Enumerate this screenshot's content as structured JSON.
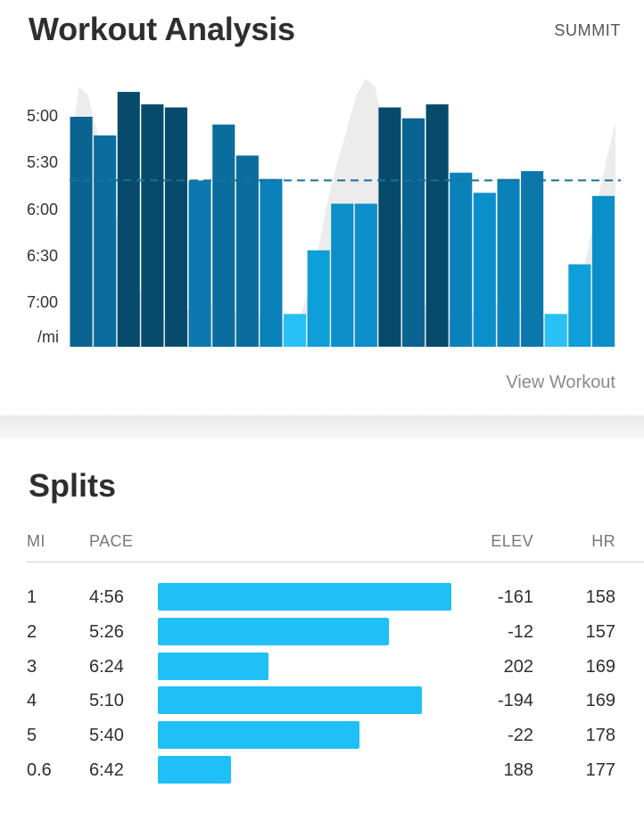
{
  "header": {
    "title": "Workout Analysis",
    "activity_label": "SUMMIT"
  },
  "chart_data": {
    "type": "bar",
    "title": "Workout Analysis",
    "y_ticks": [
      "5:00",
      "5:30",
      "6:00",
      "6:30",
      "7:00"
    ],
    "y_unit_label": "/mi",
    "y_axis_seconds": [
      300,
      330,
      360,
      390,
      420
    ],
    "ylim": [
      270,
      444
    ],
    "average_pace_sec": 341,
    "pace_sec": [
      300,
      312,
      284,
      292,
      294,
      341,
      305,
      325,
      340,
      427,
      386,
      356,
      356,
      294,
      301,
      292,
      336,
      349,
      340,
      335,
      427,
      395,
      351
    ],
    "bar_colors": [
      "#0a6391",
      "#0a6d9d",
      "#064a6c",
      "#064a6c",
      "#064a6c",
      "#0a78ad",
      "#0a6d9d",
      "#0a6d9d",
      "#0b81ba",
      "#29c1f5",
      "#0e9fd8",
      "#0c8ec8",
      "#0c8ec8",
      "#064a6c",
      "#0a6391",
      "#064a6c",
      "#0b81ba",
      "#0b8fcb",
      "#0b81ba",
      "#0a78ad",
      "#29c1f5",
      "#0e9fd8",
      "#0b8fcb"
    ],
    "elevation_profile": [
      0.7,
      0.95,
      0.92,
      0.78,
      0.62,
      0.48,
      0.35,
      0.25,
      0.18,
      0.12,
      0.1,
      0.1,
      0.12,
      0.14,
      0.15,
      0.16,
      0.15,
      0.14,
      0.13,
      0.12,
      0.11,
      0.1,
      0.1,
      0.1,
      0.1,
      0.12,
      0.22,
      0.38,
      0.55,
      0.68,
      0.8,
      0.92,
      0.98,
      0.95,
      0.8,
      0.6,
      0.42,
      0.28,
      0.18,
      0.12,
      0.1,
      0.1,
      0.1,
      0.11,
      0.13,
      0.15,
      0.16,
      0.15,
      0.14,
      0.13,
      0.12,
      0.11,
      0.1,
      0.1,
      0.12,
      0.2,
      0.35,
      0.52,
      0.68,
      0.82
    ],
    "grid": false,
    "legend": "none"
  },
  "footer": {
    "view_workout_label": "View Workout"
  },
  "splits": {
    "title": "Splits",
    "columns": {
      "mi": "MI",
      "pace": "PACE",
      "elev": "ELEV",
      "hr": "HR"
    },
    "max_bar_fraction_basis": "fastest pace = longest bar",
    "rows": [
      {
        "mi": "1",
        "pace": "4:56",
        "pace_sec": 296,
        "elev": "-161",
        "hr": "158"
      },
      {
        "mi": "2",
        "pace": "5:26",
        "pace_sec": 326,
        "elev": "-12",
        "hr": "157"
      },
      {
        "mi": "3",
        "pace": "6:24",
        "pace_sec": 384,
        "elev": "202",
        "hr": "169"
      },
      {
        "mi": "4",
        "pace": "5:10",
        "pace_sec": 310,
        "elev": "-194",
        "hr": "169"
      },
      {
        "mi": "5",
        "pace": "5:40",
        "pace_sec": 340,
        "elev": "-22",
        "hr": "178"
      },
      {
        "mi": "0.6",
        "pace": "6:42",
        "pace_sec": 402,
        "elev": "188",
        "hr": "177"
      }
    ]
  }
}
